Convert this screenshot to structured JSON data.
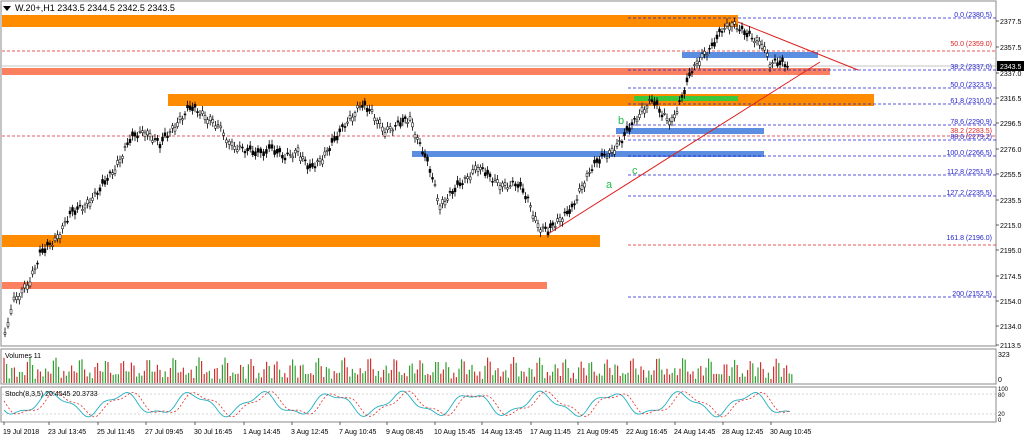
{
  "header": {
    "symbol_line": "W.20+,H1  2343.5 2344.5 2342.5 2343.5",
    "menu_icon": "dropdown-triangle-icon"
  },
  "price_axis": {
    "labels": [
      "2377.5",
      "2357.5",
      "2337.0",
      "2316.5",
      "2296.5",
      "2276.0",
      "2255.5",
      "2235.5",
      "2215.0",
      "2195.0",
      "2174.5",
      "2154.0",
      "2134.0",
      "2113.5"
    ],
    "current_price": "2343.5"
  },
  "fib_levels": [
    {
      "label": "0.0 (2380.5)",
      "color": "#1e1ecc"
    },
    {
      "label": "50.0 (2359.0)",
      "color": "#e02020"
    },
    {
      "label": "38.2 (2337.0)",
      "color": "#1e1ecc"
    },
    {
      "label": "50.0 (2323.5)",
      "color": "#1e1ecc"
    },
    {
      "label": "61.8 (2310.0)",
      "color": "#1e1ecc"
    },
    {
      "label": "78.6 (2290.9)",
      "color": "#1e1ecc"
    },
    {
      "label": "38.2 (2283.5)",
      "color": "#e02020"
    },
    {
      "label": "88.6 (2279.2)",
      "color": "#1e1ecc"
    },
    {
      "label": "100.0 (2266.5)",
      "color": "#1e1ecc"
    },
    {
      "label": "112.8 (2251.9)",
      "color": "#1e1ecc"
    },
    {
      "label": "127.2 (2235.5)",
      "color": "#1e1ecc"
    },
    {
      "label": "161.8 (2196.0)",
      "color": "#1e1ecc"
    },
    {
      "label": "200 (2152.5)",
      "color": "#1e1ecc"
    }
  ],
  "wave_labels": {
    "a": "a",
    "b": "b",
    "c": "c"
  },
  "volume": {
    "title": "Volumes 11",
    "max_label": "323",
    "zero_label": "0"
  },
  "stoch": {
    "title": "Stoch(8,3,5) 20.4545 20.3733",
    "levels": [
      "100",
      "80",
      "20",
      "0"
    ]
  },
  "time_axis": [
    "19 Jul 2018",
    "23 Jul 13:45",
    "25 Jul 11:45",
    "27 Jul 09:45",
    "30 Jul 16:45",
    "1 Aug 14:45",
    "3 Aug 12:45",
    "7 Aug 10:45",
    "9 Aug 08:45",
    "10 Aug 15:45",
    "14 Aug 13:45",
    "17 Aug 11:45",
    "21 Aug 09:45",
    "22 Aug 16:45",
    "24 Aug 14:45",
    "28 Aug 12:45",
    "30 Aug 10:45"
  ],
  "colors": {
    "orange_zone": "#ff8c00",
    "salmon_zone": "#fa8060",
    "blue_zone": "#5b8ee0",
    "green_zone": "#3cc83c",
    "trend": "#e02020",
    "bull": "#000000",
    "wave": "#22c04a"
  }
}
